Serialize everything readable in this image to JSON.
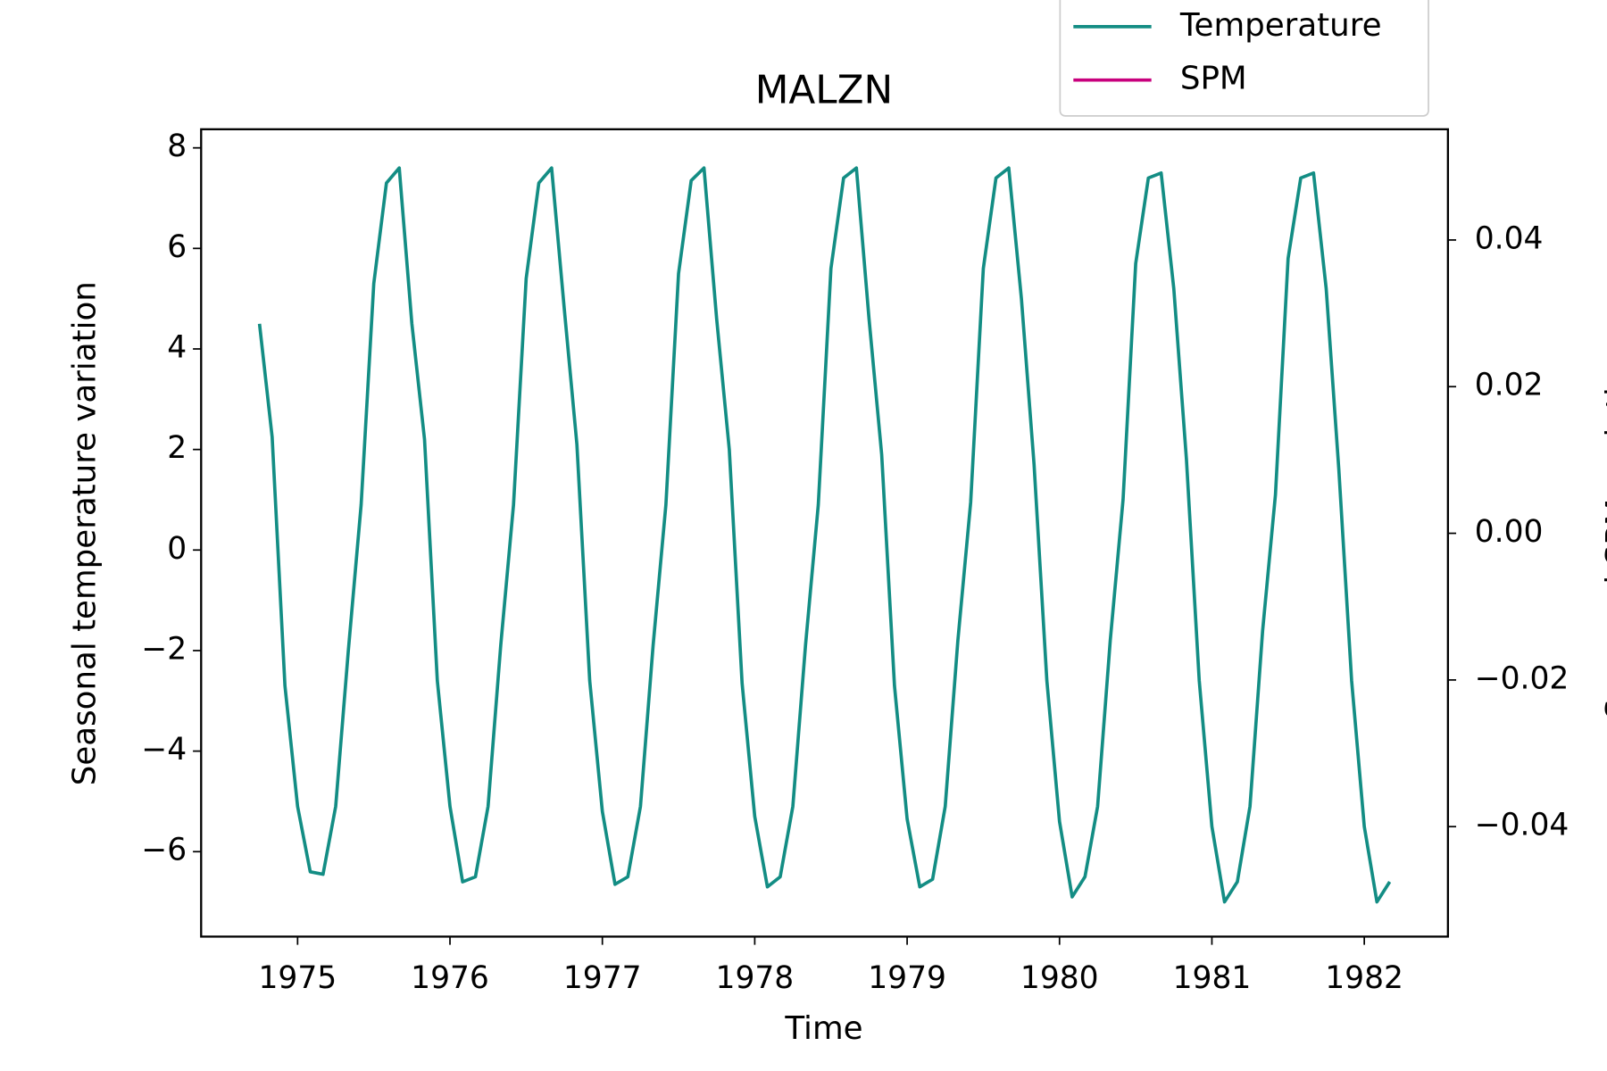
{
  "chart_data": {
    "type": "line",
    "title": "MALZN",
    "x_label": "Time",
    "y_label": "Seasonal temperature variation",
    "y2_label": "Seasonal SPM variation",
    "x": [
      1974.75,
      1974.833,
      1974.917,
      1975,
      1975.083,
      1975.167,
      1975.25,
      1975.333,
      1975.417,
      1975.5,
      1975.583,
      1975.667,
      1975.75,
      1975.833,
      1975.917,
      1976,
      1976.083,
      1976.167,
      1976.25,
      1976.333,
      1976.417,
      1976.5,
      1976.583,
      1976.667,
      1976.75,
      1976.833,
      1976.917,
      1977,
      1977.083,
      1977.167,
      1977.25,
      1977.333,
      1977.417,
      1977.5,
      1977.583,
      1977.667,
      1977.75,
      1977.833,
      1977.917,
      1978,
      1978.083,
      1978.167,
      1978.25,
      1978.333,
      1978.417,
      1978.5,
      1978.583,
      1978.667,
      1978.75,
      1978.833,
      1978.917,
      1979,
      1979.083,
      1979.167,
      1979.25,
      1979.333,
      1979.417,
      1979.5,
      1979.583,
      1979.667,
      1979.75,
      1979.833,
      1979.917,
      1980,
      1980.083,
      1980.167,
      1980.25,
      1980.333,
      1980.417,
      1980.5,
      1980.583,
      1980.667,
      1980.75,
      1980.833,
      1980.917,
      1981,
      1981.083,
      1981.167,
      1981.25,
      1981.333,
      1981.417,
      1981.5,
      1981.583,
      1981.667,
      1981.75,
      1981.833,
      1981.917,
      1982,
      1982.083,
      1982.167
    ],
    "series": [
      {
        "name": "Temperature",
        "color": "#138d84",
        "axis": "y",
        "values": [
          4.5,
          2.25,
          -2.7,
          -5.1,
          -6.4,
          -6.45,
          -5.1,
          -2.0,
          0.9,
          5.3,
          7.3,
          7.6,
          4.5,
          2.2,
          -2.6,
          -5.1,
          -6.6,
          -6.5,
          -5.1,
          -1.9,
          0.9,
          5.4,
          7.3,
          7.6,
          4.8,
          2.1,
          -2.6,
          -5.2,
          -6.65,
          -6.5,
          -5.1,
          -1.9,
          0.9,
          5.5,
          7.35,
          7.6,
          4.6,
          2.0,
          -2.65,
          -5.3,
          -6.7,
          -6.5,
          -5.1,
          -1.9,
          0.9,
          5.6,
          7.4,
          7.6,
          4.6,
          1.9,
          -2.7,
          -5.35,
          -6.7,
          -6.55,
          -5.1,
          -1.8,
          0.95,
          5.6,
          7.4,
          7.6,
          5.0,
          1.7,
          -2.6,
          -5.4,
          -6.9,
          -6.5,
          -5.1,
          -1.8,
          1.0,
          5.7,
          7.4,
          7.5,
          5.2,
          1.8,
          -2.6,
          -5.5,
          -7.0,
          -6.6,
          -5.1,
          -1.6,
          1.1,
          5.8,
          7.4,
          7.5,
          5.2,
          1.6,
          -2.6,
          -5.5,
          -7.0,
          -6.6
        ]
      },
      {
        "name": "SPM",
        "color": "#c8007d",
        "axis": "y2",
        "values": [
          null,
          null,
          null,
          null,
          null,
          null,
          null,
          null,
          null,
          null,
          null,
          null,
          null,
          null,
          null,
          null,
          null,
          null,
          null,
          null,
          null,
          null,
          null,
          null,
          null,
          null,
          null,
          null,
          null,
          null,
          null,
          null,
          null,
          null,
          null,
          null,
          null,
          null,
          null,
          null,
          null,
          null,
          null,
          null,
          null,
          null,
          null,
          null,
          null,
          null,
          null,
          null,
          null,
          null,
          null,
          null,
          null,
          null,
          null,
          null,
          null,
          null,
          null,
          null,
          null,
          null,
          null,
          null,
          null,
          null,
          null,
          null,
          null,
          null,
          null,
          null,
          null,
          null,
          null,
          null,
          null,
          null,
          null,
          null,
          null,
          null,
          null,
          null,
          null,
          null
        ]
      }
    ],
    "xlim": [
      1974.367,
      1982.549
    ],
    "xticks": [
      1975,
      1976,
      1977,
      1978,
      1979,
      1980,
      1981,
      1982
    ],
    "ylim": [
      -7.69,
      8.37
    ],
    "yticks": [
      {
        "value": -6,
        "label": "−6"
      },
      {
        "value": -4,
        "label": "−4"
      },
      {
        "value": -2,
        "label": "−2"
      },
      0,
      2,
      4,
      6,
      8
    ],
    "y2lim": [
      -0.055,
      0.0551
    ],
    "y2ticks": [
      {
        "value": -0.04,
        "label": "−0.04"
      },
      {
        "value": -0.02,
        "label": "−0.02"
      },
      {
        "value": 0,
        "label": "0.00"
      },
      0.02,
      0.04
    ]
  }
}
